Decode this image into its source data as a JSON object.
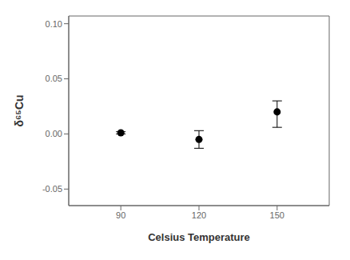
{
  "chart_data": {
    "type": "scatter",
    "xlabel": "Celsius Temperature",
    "ylabel": "δ⁶⁵Cu",
    "x": [
      90,
      120,
      150
    ],
    "values": [
      0.001,
      -0.005,
      0.02
    ],
    "yerr_lower": [
      0.001,
      0.008,
      0.014
    ],
    "yerr_upper": [
      0.001,
      0.008,
      0.01
    ],
    "color": "#000000",
    "xlim": [
      70,
      170
    ],
    "ylim": [
      -0.065,
      0.107
    ],
    "xticks": [
      90,
      120,
      150
    ],
    "yticks": [
      -0.05,
      {
        "value": 0,
        "label": "0.00"
      },
      0.05,
      {
        "value": 0.1,
        "label": "0.10"
      }
    ],
    "grid": false
  }
}
